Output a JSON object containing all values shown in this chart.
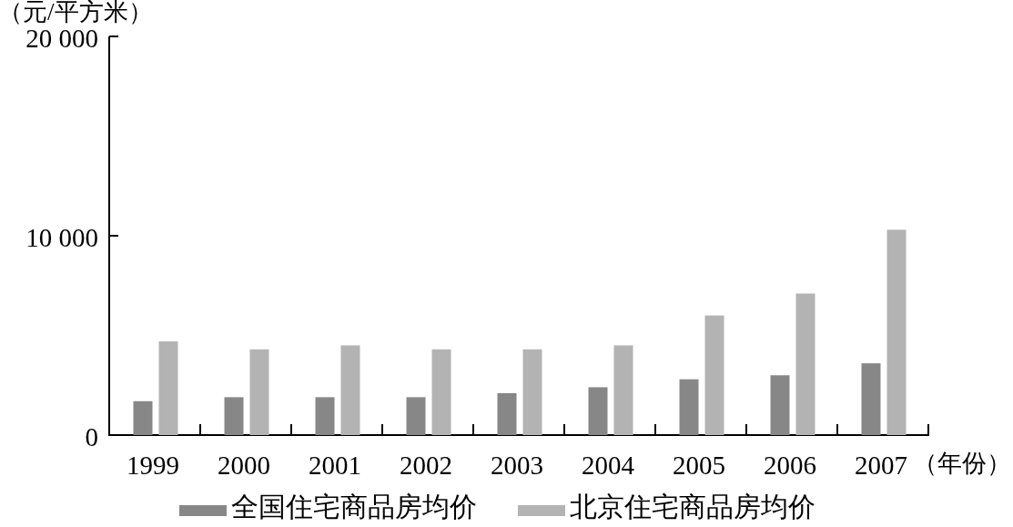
{
  "chart_data": {
    "type": "bar",
    "ylabel": "（元/平方米）",
    "xlabel": "（年份）",
    "categories": [
      "1999",
      "2000",
      "2001",
      "2002",
      "2003",
      "2004",
      "2005",
      "2006",
      "2007"
    ],
    "series": [
      {
        "name": "全国住宅商品房均价",
        "color": "#878787",
        "values": [
          1700,
          1900,
          1900,
          1900,
          2100,
          2400,
          2800,
          3000,
          3600
        ]
      },
      {
        "name": "北京住宅商品房均价",
        "color": "#b3b3b3",
        "values": [
          4700,
          4300,
          4500,
          4300,
          4300,
          4500,
          6000,
          7100,
          10300
        ]
      }
    ],
    "ylim": [
      0,
      20000
    ],
    "yticks": [
      0,
      {
        "value": 10000,
        "label": "10 000"
      },
      {
        "value": 20000,
        "label": "20 000"
      }
    ],
    "legend": "bottom",
    "grid": false
  }
}
